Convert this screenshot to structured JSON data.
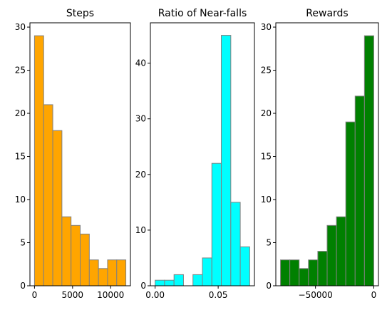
{
  "chart_data": [
    {
      "type": "histogram",
      "title": "Steps",
      "color": "#ffa500",
      "edgecolor": "#808080",
      "bins": [
        [
          0,
          1200,
          29
        ],
        [
          1200,
          2400,
          21
        ],
        [
          2400,
          3600,
          18
        ],
        [
          3600,
          4800,
          8
        ],
        [
          4800,
          6000,
          7
        ],
        [
          6000,
          7200,
          6
        ],
        [
          7200,
          8400,
          3
        ],
        [
          8400,
          9600,
          2
        ],
        [
          9600,
          10800,
          3
        ],
        [
          10800,
          12000,
          3
        ]
      ],
      "xlim": [
        -600,
        12600
      ],
      "ylim": [
        0,
        30.5
      ],
      "xticks": [
        0,
        5000,
        10000
      ],
      "xtick_labels": [
        "0",
        "5000",
        "10000"
      ],
      "yticks": [
        0,
        5,
        10,
        15,
        20,
        25,
        30
      ],
      "ytick_labels": [
        "0",
        "5",
        "10",
        "15",
        "20",
        "25",
        "30"
      ]
    },
    {
      "type": "histogram",
      "title": "Ratio of Near-falls",
      "color": "#00ffff",
      "edgecolor": "#808080",
      "bins": [
        [
          0.0,
          0.0075,
          1
        ],
        [
          0.0075,
          0.015,
          1
        ],
        [
          0.015,
          0.0225,
          2
        ],
        [
          0.0225,
          0.03,
          0
        ],
        [
          0.03,
          0.0375,
          2
        ],
        [
          0.0375,
          0.045,
          5
        ],
        [
          0.045,
          0.0525,
          22
        ],
        [
          0.0525,
          0.06,
          45
        ],
        [
          0.06,
          0.0675,
          15
        ],
        [
          0.0675,
          0.075,
          7
        ]
      ],
      "xlim": [
        -0.00375,
        0.07875
      ],
      "ylim": [
        0,
        47.25
      ],
      "xticks": [
        0.0,
        0.05
      ],
      "xtick_labels": [
        "0.00",
        "0.05"
      ],
      "yticks": [
        0,
        10,
        20,
        30,
        40
      ],
      "ytick_labels": [
        "0",
        "10",
        "20",
        "30",
        "40"
      ]
    },
    {
      "type": "histogram",
      "title": "Rewards",
      "color": "#008000",
      "edgecolor": "#808080",
      "bins": [
        [
          -80000,
          -72000,
          3
        ],
        [
          -72000,
          -64000,
          3
        ],
        [
          -64000,
          -56000,
          2
        ],
        [
          -56000,
          -48000,
          3
        ],
        [
          -48000,
          -40000,
          4
        ],
        [
          -40000,
          -32000,
          7
        ],
        [
          -32000,
          -24000,
          8
        ],
        [
          -24000,
          -16000,
          19
        ],
        [
          -16000,
          -8000,
          22
        ],
        [
          -8000,
          0,
          29
        ]
      ],
      "xlim": [
        -84000,
        4000
      ],
      "ylim": [
        0,
        30.5
      ],
      "xticks": [
        -50000,
        0
      ],
      "xtick_labels": [
        "−50000",
        "0"
      ],
      "yticks": [
        0,
        5,
        10,
        15,
        20,
        25,
        30
      ],
      "ytick_labels": [
        "0",
        "5",
        "10",
        "15",
        "20",
        "25",
        "30"
      ]
    }
  ]
}
